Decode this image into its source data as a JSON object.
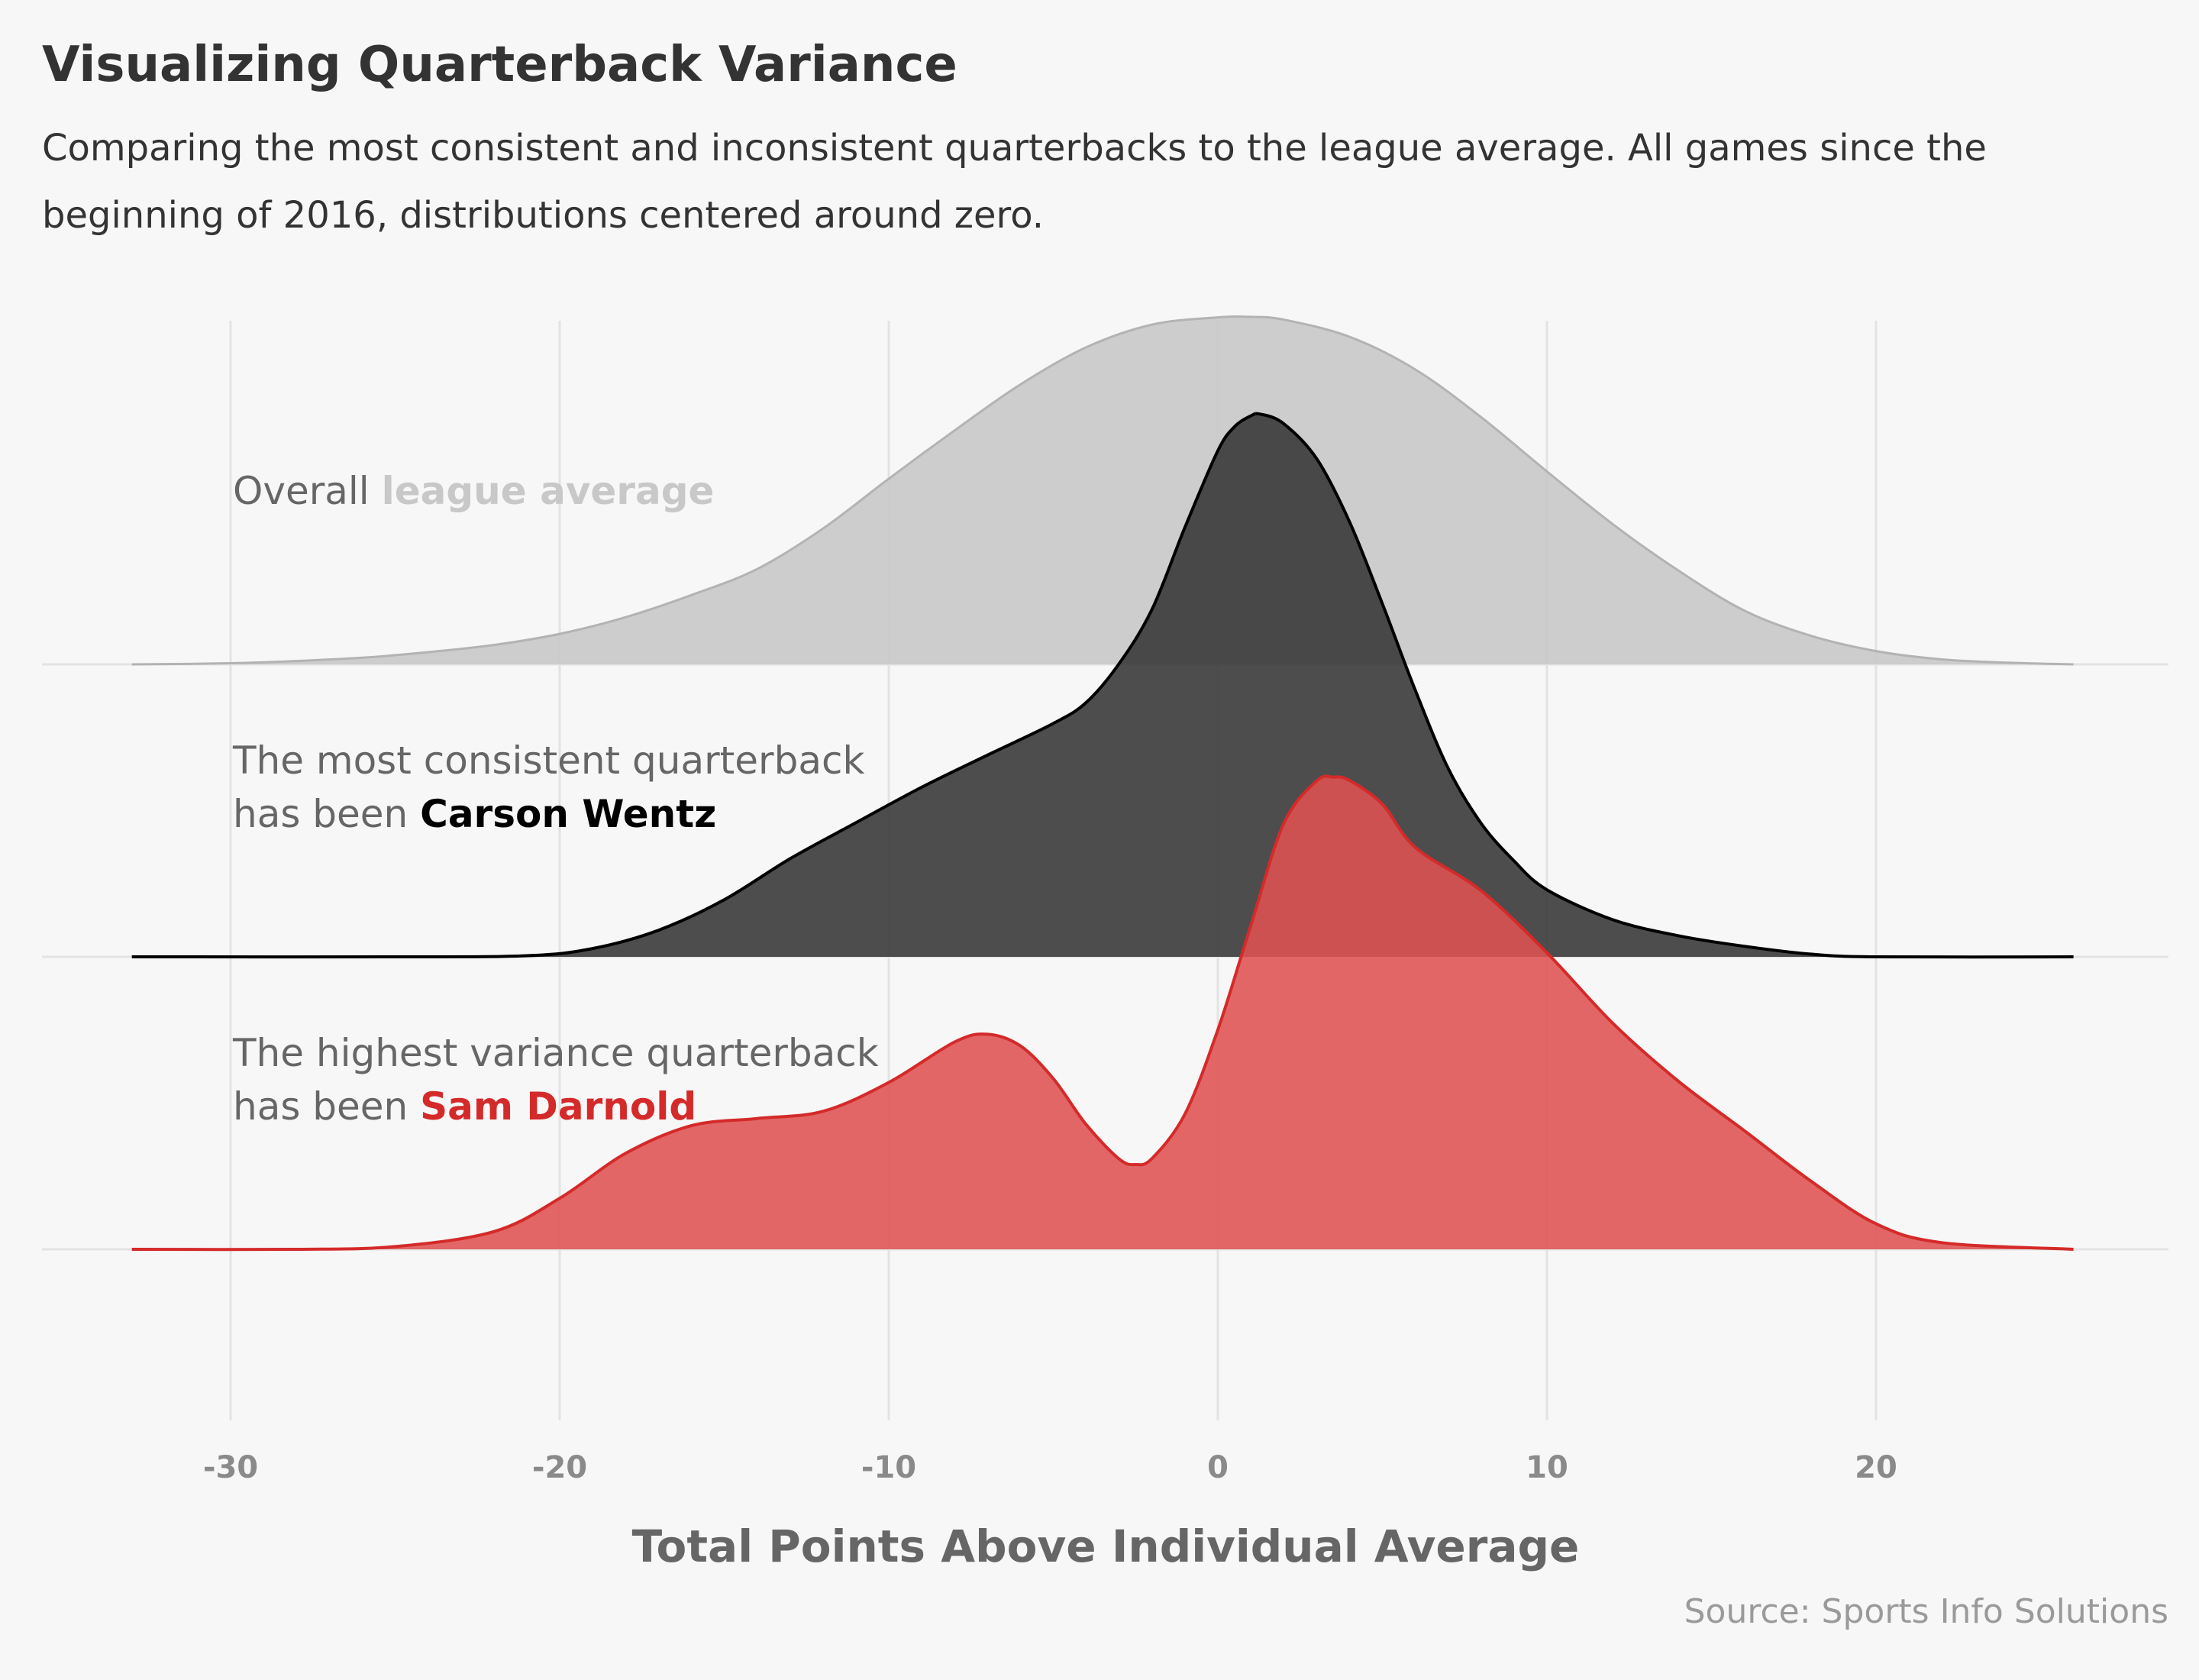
{
  "title": "Visualizing Quarterback Variance",
  "subtitle": "Comparing the most consistent and inconsistent quarterbacks to the league average. All games since the beginning of 2016, distributions centered around zero.",
  "source": "Source: Sports Info Solutions",
  "colors": {
    "background": "#f7f7f7",
    "gridline": "#e3e3e3",
    "league_fill": "#c8c8c8",
    "league_line": "#b3b3b3",
    "wentz_fill": "#3a3a3a",
    "wentz_line": "#000000",
    "darnold_fill": "#e05252",
    "darnold_line": "#d42a2a",
    "annotation_text": "#666666",
    "tick_text": "#8a8a8a",
    "axis_title": "#666666"
  },
  "chart_data": {
    "type": "ridgeline",
    "xlabel": "Total Points Above Individual Average",
    "xlim": [
      -33,
      26
    ],
    "x_ticks": [
      -30,
      -20,
      -10,
      0,
      10,
      20
    ],
    "x_tick_labels": [
      "-30",
      "-20",
      "-10",
      "0",
      "10",
      "20"
    ],
    "grid": true,
    "legend": "none",
    "density_peak": 0.062,
    "series": [
      {
        "key": "league",
        "annotation": {
          "line1_plain": "Overall ",
          "line1_highlight": "league average",
          "line2_plain": "",
          "line2_highlight": ""
        },
        "x": [
          -33,
          -30,
          -28,
          -26,
          -24,
          -22,
          -20,
          -18,
          -16,
          -14,
          -12,
          -10,
          -8,
          -6,
          -4,
          -2,
          0,
          1,
          2,
          4,
          6,
          8,
          10,
          12,
          14,
          16,
          18,
          20,
          22,
          24,
          26
        ],
        "density": [
          0.0,
          0.0002,
          0.0006,
          0.0012,
          0.0022,
          0.0035,
          0.0055,
          0.0085,
          0.0125,
          0.0172,
          0.0245,
          0.0335,
          0.0422,
          0.0505,
          0.0572,
          0.0613,
          0.0626,
          0.0627,
          0.0622,
          0.0591,
          0.0532,
          0.0446,
          0.0348,
          0.0253,
          0.0169,
          0.0097,
          0.0052,
          0.0024,
          0.0009,
          0.0003,
          0.0
        ]
      },
      {
        "key": "wentz",
        "annotation": {
          "line1_plain": "The most consistent quarterback",
          "line1_highlight": "",
          "line2_plain": "has been ",
          "line2_highlight": "Carson Wentz"
        },
        "x": [
          -33,
          -25,
          -21,
          -19,
          -17,
          -15,
          -13,
          -11,
          -9,
          -7,
          -5,
          -4,
          -3,
          -2,
          -1,
          0,
          0.5,
          1,
          1.3,
          2,
          3,
          4,
          5,
          6,
          7,
          8,
          9,
          10,
          12,
          14,
          16,
          18,
          20,
          26
        ],
        "density": [
          0.0,
          0.0,
          0.0002,
          0.0015,
          0.0048,
          0.0103,
          0.0177,
          0.0242,
          0.0306,
          0.0364,
          0.0421,
          0.0459,
          0.0529,
          0.0627,
          0.0775,
          0.0913,
          0.0956,
          0.0976,
          0.0979,
          0.0962,
          0.0899,
          0.0785,
          0.0637,
          0.0481,
          0.034,
          0.0241,
          0.0173,
          0.0121,
          0.0067,
          0.0038,
          0.0019,
          0.0005,
          0.0,
          0.0
        ]
      },
      {
        "key": "darnold",
        "annotation": {
          "line1_plain": "The highest variance quarterback",
          "line1_highlight": "",
          "line2_plain": "has been ",
          "line2_highlight": "Sam Darnold"
        },
        "x": [
          -33,
          -28,
          -25,
          -22,
          -20,
          -18,
          -16,
          -14,
          -12,
          -10,
          -8,
          -7,
          -6,
          -5,
          -4,
          -3,
          -2.5,
          -2,
          -1,
          0,
          1,
          2,
          3,
          3.5,
          4,
          5,
          6,
          8,
          10,
          12,
          14,
          16,
          18,
          20,
          22,
          26
        ],
        "density": [
          0.0,
          0.0,
          0.0005,
          0.0032,
          0.0092,
          0.0173,
          0.0223,
          0.0236,
          0.0249,
          0.0301,
          0.0374,
          0.0388,
          0.0367,
          0.0308,
          0.0225,
          0.0163,
          0.0153,
          0.0164,
          0.0244,
          0.0396,
          0.0584,
          0.0768,
          0.0845,
          0.0852,
          0.0846,
          0.0803,
          0.0725,
          0.0647,
          0.0535,
          0.0408,
          0.0303,
          0.0214,
          0.0124,
          0.0046,
          0.0012,
          0.0
        ]
      }
    ]
  }
}
